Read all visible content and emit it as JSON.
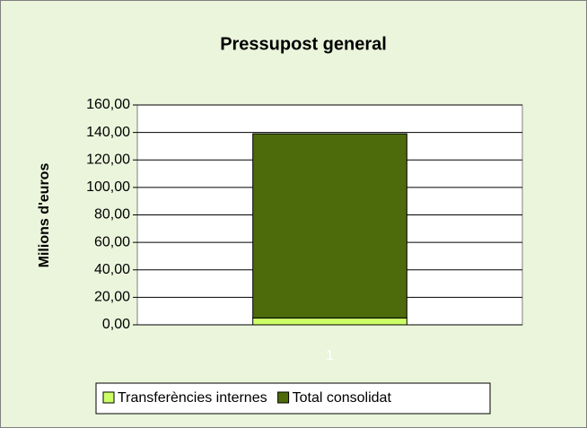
{
  "chart_data": {
    "type": "stacked_bar",
    "title": "Pressupost general",
    "y_label": "Milions d'euros",
    "categories": [
      "1"
    ],
    "series": [
      {
        "name": "Transferències internes",
        "color": "#ccff66",
        "values": [
          5
        ]
      },
      {
        "name": "Total consolidat",
        "color": "#4d6b0b",
        "values": [
          134
        ]
      }
    ],
    "ylim": [
      0,
      160
    ],
    "yticks": [
      {
        "value": 0,
        "label": "0,00"
      },
      {
        "value": 20,
        "label": "20,00"
      },
      {
        "value": 40,
        "label": "40,00"
      },
      {
        "value": 60,
        "label": "60,00"
      },
      {
        "value": 80,
        "label": "80,00"
      },
      {
        "value": 100,
        "label": "100,00"
      },
      {
        "value": 120,
        "label": "120,00"
      },
      {
        "value": 140,
        "label": "140,00"
      },
      {
        "value": 160,
        "label": "160,00"
      }
    ],
    "grid": true
  }
}
